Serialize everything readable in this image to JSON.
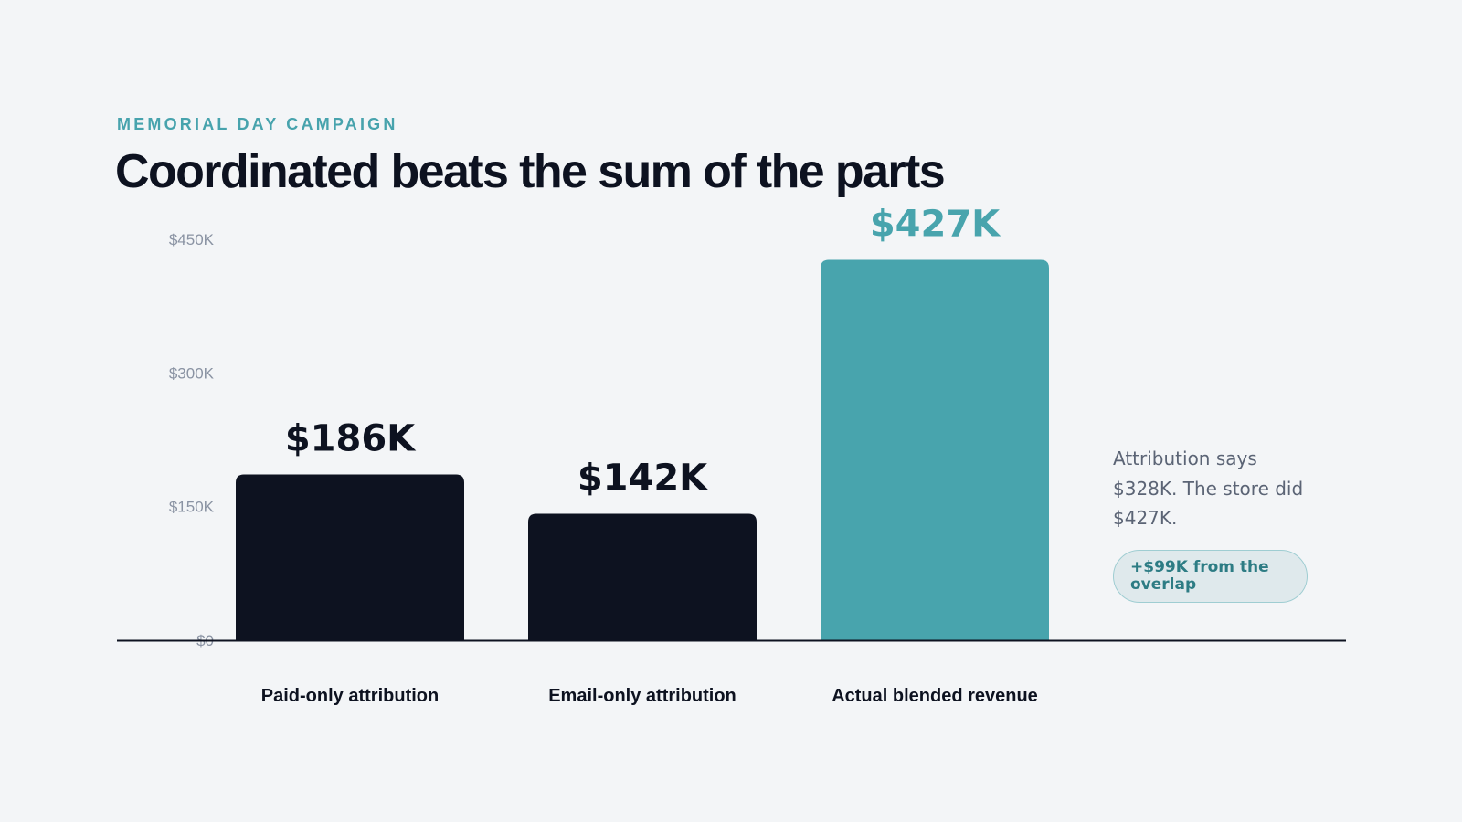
{
  "header": {
    "eyebrow": "MEMORIAL DAY CAMPAIGN",
    "title": "Coordinated beats the sum of the parts"
  },
  "chart_data": {
    "type": "bar",
    "categories": [
      "Paid-only attribution",
      "Email-only attribution",
      "Actual blended revenue"
    ],
    "values": [
      186,
      142,
      427
    ],
    "value_labels": [
      "$186K",
      "$142K",
      "$427K"
    ],
    "highlight_index": 2,
    "yticks": [
      0,
      150,
      300,
      450
    ],
    "ytick_labels": [
      "$0",
      "$150K",
      "$300K",
      "$450K"
    ],
    "ylim": [
      0,
      450
    ],
    "grid": false,
    "colors": {
      "default_bar": "#0d1220",
      "highlight_bar": "#48a4ad",
      "default_label": "#0d1220",
      "highlight_label": "#48a4ad",
      "axis": "#0d1220",
      "tick_text": "#8a93a3"
    }
  },
  "annotation": {
    "text": "Attribution says $328K. The store did $427K.",
    "badge": "+$99K from the overlap"
  }
}
